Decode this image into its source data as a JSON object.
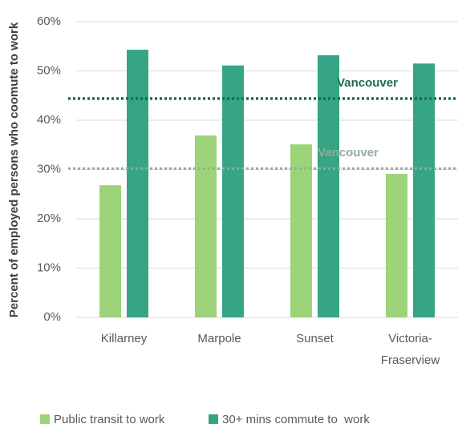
{
  "chart_data": {
    "type": "bar",
    "y_axis_label": "Percent of employed persons who coomute to work",
    "categories": [
      "Killarney",
      "Marpole",
      "Sunset",
      "Victoria-Fraserview"
    ],
    "series": [
      {
        "name": "Public transit to work",
        "color": "#9dd47a",
        "values": [
          26.8,
          36.9,
          35.1,
          29.1
        ]
      },
      {
        "name": "30+ mins commute to  work",
        "color": "#35a585",
        "values": [
          54.3,
          51.1,
          53.2,
          51.5
        ]
      }
    ],
    "reference_lines": [
      {
        "label": "Vancouver",
        "value": 44.4,
        "color": "#1e6b4f"
      },
      {
        "label": "Vancouver",
        "value": 30.2,
        "color": "#94ad9c"
      }
    ],
    "ylim": [
      0,
      60
    ],
    "yticks": [
      {
        "value": 0,
        "label": "0%"
      },
      {
        "value": 10,
        "label": "10%"
      },
      {
        "value": 20,
        "label": "20%"
      },
      {
        "value": 30,
        "label": "30%"
      },
      {
        "value": 40,
        "label": "40%"
      },
      {
        "value": 50,
        "label": "50%"
      },
      {
        "value": 60,
        "label": "60%"
      }
    ],
    "grid": true,
    "legend": "bottom"
  }
}
